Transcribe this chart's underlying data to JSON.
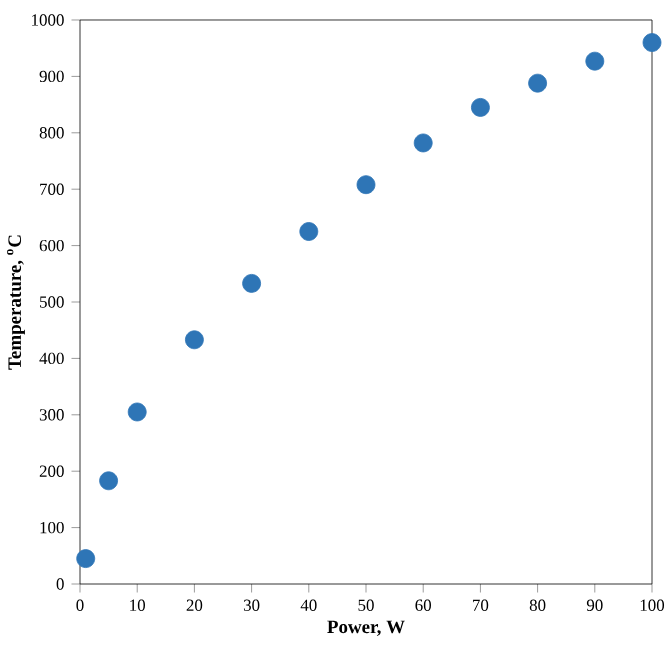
{
  "chart_data": {
    "type": "scatter",
    "xlabel": "Power, W",
    "ylabel": "Temperature, $^{o}$C",
    "x": [
      1,
      5,
      10,
      20,
      30,
      40,
      50,
      60,
      70,
      80,
      90,
      100
    ],
    "values": [
      45,
      183,
      305,
      433,
      533,
      625,
      708,
      782,
      845,
      888,
      927,
      960
    ],
    "color": "#2e75b6",
    "xlim": [
      0,
      100
    ],
    "xticks": [
      0,
      10,
      20,
      30,
      40,
      50,
      60,
      70,
      80,
      90,
      100
    ],
    "ylim": [
      0,
      1000
    ],
    "yticks": [
      0,
      100,
      200,
      300,
      400,
      500,
      600,
      700,
      800,
      900,
      1000
    ]
  }
}
